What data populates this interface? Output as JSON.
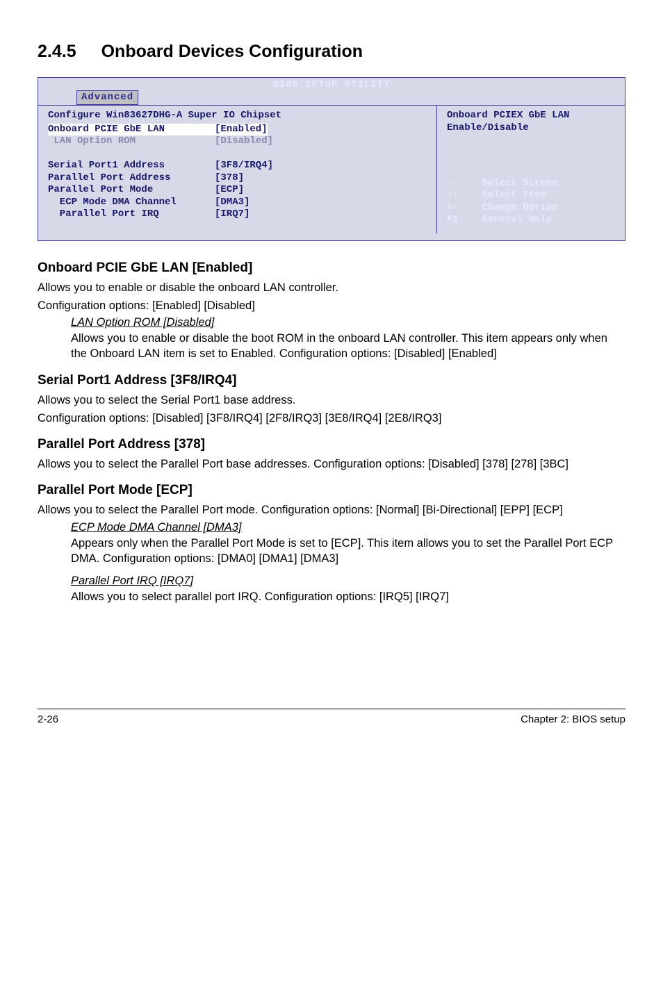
{
  "section": {
    "number": "2.4.5",
    "title": "Onboard Devices Configuration"
  },
  "bios": {
    "header_title": "BIOS SETUP UTILITY",
    "tab": "Advanced",
    "left": {
      "heading": "Configure Win83627DHG-A Super IO Chipset",
      "rows": [
        {
          "label": "Onboard PCIE GbE LAN",
          "value": "[Enabled]",
          "style": "sel"
        },
        {
          "label": " LAN Option ROM",
          "value": "[Disabled]",
          "style": "dim"
        },
        {
          "label": "",
          "value": "",
          "style": "blank"
        },
        {
          "label": "Serial Port1 Address",
          "value": "[3F8/IRQ4]",
          "style": "blue"
        },
        {
          "label": "Parallel Port Address",
          "value": "[378]",
          "style": "blue"
        },
        {
          "label": "Parallel Port Mode",
          "value": "[ECP]",
          "style": "blue"
        },
        {
          "label": "  ECP Mode DMA Channel",
          "value": "[DMA3]",
          "style": "blue"
        },
        {
          "label": "  Parallel Port IRQ",
          "value": "[IRQ7]",
          "style": "blue"
        }
      ]
    },
    "right": {
      "help_top": "Onboard PCIEX GbE LAN \nEnable/Disable",
      "keys": [
        {
          "sym": "←→",
          "label": "Select Screen"
        },
        {
          "sym": "↑↓",
          "label": "Select Item"
        },
        {
          "sym": "+-",
          "label": "Change Option"
        },
        {
          "sym": "F1",
          "label": "General Help"
        }
      ]
    }
  },
  "content": {
    "h1": "Onboard PCIE GbE LAN [Enabled]",
    "p1a": "Allows you to enable or disable the onboard LAN controller.",
    "p1b": "Configuration options: [Enabled] [Disabled]",
    "sub1_title": "LAN Option ROM [Disabled]",
    "sub1_body": "Allows you to enable or disable the boot ROM in the onboard LAN controller. This item appears only when the Onboard LAN item is set to Enabled. Configuration options: [Disabled] [Enabled]",
    "h2": "Serial Port1 Address [3F8/IRQ4]",
    "p2a": "Allows you to select the Serial Port1 base address.",
    "p2b": "Configuration options: [Disabled] [3F8/IRQ4] [2F8/IRQ3] [3E8/IRQ4] [2E8/IRQ3]",
    "h3": "Parallel Port Address [378]",
    "p3": "Allows you to select the Parallel Port base addresses. Configuration options: [Disabled] [378] [278] [3BC]",
    "h4": "Parallel Port Mode [ECP]",
    "p4": "Allows you to select the Parallel Port  mode. Configuration options: [Normal] [Bi-Directional] [EPP] [ECP]",
    "sub2_title": "ECP Mode DMA Channel [DMA3]",
    "sub2_body": "Appears only when the Parallel Port Mode is set to [ECP]. This item allows you to set the Parallel Port ECP DMA. Configuration options: [DMA0] [DMA1] [DMA3]",
    "sub3_title": "Parallel Port IRQ [IRQ7]",
    "sub3_body": "Allows you to select parallel port IRQ. Configuration options: [IRQ5] [IRQ7]"
  },
  "footer": {
    "left": "2-26",
    "right": "Chapter 2: BIOS setup"
  }
}
